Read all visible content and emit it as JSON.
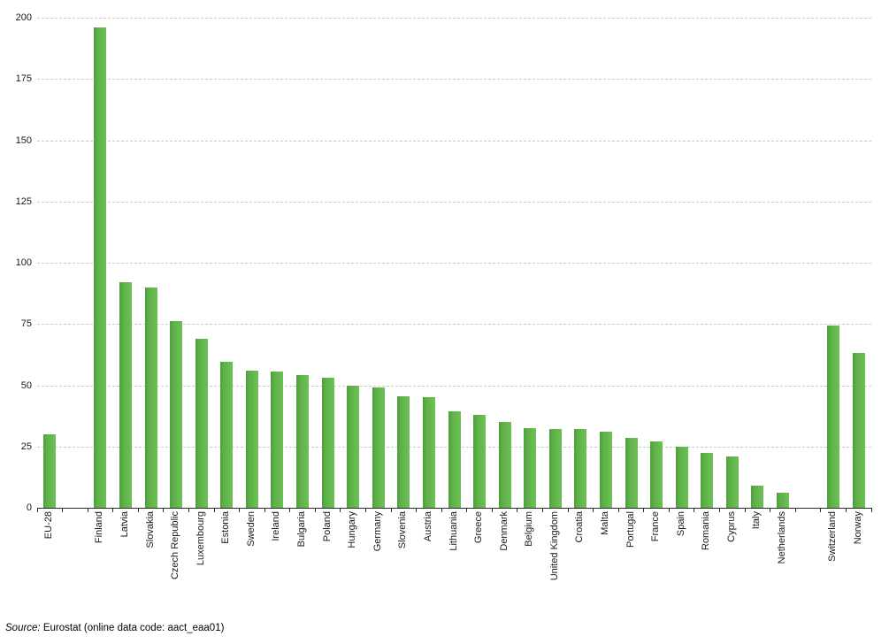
{
  "chart_data": {
    "type": "bar",
    "title": "",
    "xlabel": "",
    "ylabel": "",
    "ylim": [
      0,
      200
    ],
    "ytick_step": 25,
    "ytick_labels": [
      "0",
      "25",
      "50",
      "75",
      "100",
      "125",
      "150",
      "175",
      "200"
    ],
    "grid": "horizontal-dashed",
    "legend": "none",
    "bar_color": "#62b74c",
    "bar_color_edge": "#4d9e3c",
    "categories": [
      "EU-28",
      "",
      "Finland",
      "Latvia",
      "Slovakia",
      "Czech Republic",
      "Luxembourg",
      "Estonia",
      "Sweden",
      "Ireland",
      "Bulgaria",
      "Poland",
      "Hungary",
      "Germany",
      "Slovenia",
      "Austria",
      "Lithuania",
      "Greece",
      "Denmark",
      "Belgium",
      "United Kingdom",
      "Croatia",
      "Malta",
      "Portugal",
      "France",
      "Spain",
      "Romania",
      "Cyprus",
      "Italy",
      "Netherlands",
      "",
      "Switzerland",
      "Norway"
    ],
    "values": [
      30,
      null,
      196,
      92,
      90,
      76,
      69,
      59.5,
      56,
      55.5,
      54,
      53,
      50,
      49,
      45.5,
      45,
      39.5,
      38,
      35,
      32.5,
      32,
      32,
      31,
      28.5,
      27,
      25,
      22.5,
      21,
      9,
      6,
      null,
      74.5,
      63
    ]
  },
  "source_note": {
    "prefix": "Source:",
    "text": "Eurostat (online data code: aact_eaa01)"
  }
}
